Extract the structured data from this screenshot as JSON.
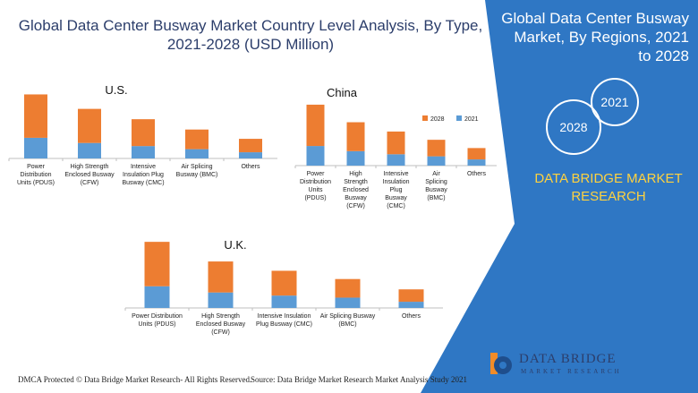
{
  "header": {
    "title": "Global Data Center Busway Market Country Level Analysis, By Type, 2021-2028 (USD Million)",
    "side_title": "Global Data Center Busway Market, By Regions, 2021 to 2028"
  },
  "brand": {
    "name": "DATA BRIDGE MARKET RESEARCH",
    "year_a": "2021",
    "year_b": "2028",
    "logo_name": "DATA BRIDGE",
    "logo_sub": "MARKET RESEARCH",
    "colors": {
      "panel": "#2f77c4",
      "text_accent": "#ffd23f",
      "bar_2028": "#ed7d31",
      "bar_2021": "#5b9bd5"
    }
  },
  "footer": {
    "dmca": "DMCA Protected © Data Bridge Market Research- All Rights Reserved.",
    "source": "Source: Data Bridge Market Research Market Analysis Study 2021"
  },
  "chart_data": [
    {
      "type": "bar",
      "stacked": true,
      "title": "U.S.",
      "categories": [
        "Power Distribution Units (PDUS)",
        "High Strength Enclosed Busway (CFW)",
        "Intensive Insulation Plug Busway (CMC)",
        "Air Splicing Busway (BMC)",
        "Others"
      ],
      "series": [
        {
          "name": "2021",
          "color": "#5b9bd5",
          "values": [
            20,
            15,
            12,
            9,
            6
          ]
        },
        {
          "name": "2028",
          "color": "#ed7d31",
          "values": [
            42,
            33,
            26,
            19,
            13
          ]
        }
      ],
      "ylim": [
        0,
        65
      ]
    },
    {
      "type": "bar",
      "stacked": true,
      "title": "China",
      "categories": [
        "Power Distribution Units (PDUS)",
        "High Strength Enclosed Busway (CFW)",
        "Intensive Insulation Plug Busway (CMC)",
        "Air Splicing Busway (BMC)",
        "Others"
      ],
      "series": [
        {
          "name": "2021",
          "color": "#5b9bd5",
          "values": [
            19,
            14,
            11,
            9,
            6
          ]
        },
        {
          "name": "2028",
          "color": "#ed7d31",
          "values": [
            40,
            28,
            22,
            16,
            11
          ]
        }
      ],
      "legend": "top-right",
      "ylim": [
        0,
        65
      ]
    },
    {
      "type": "bar",
      "stacked": true,
      "title": "U.K.",
      "categories": [
        "Power Distribution Units (PDUS)",
        "High Strength Enclosed Busway (CFW)",
        "Intensive Insulation Plug Busway (CMC)",
        "Air Splicing Busway (BMC)",
        "Others"
      ],
      "series": [
        {
          "name": "2021",
          "color": "#5b9bd5",
          "values": [
            21,
            15,
            12,
            10,
            6
          ]
        },
        {
          "name": "2028",
          "color": "#ed7d31",
          "values": [
            43,
            30,
            24,
            18,
            12
          ]
        }
      ],
      "ylim": [
        0,
        65
      ]
    }
  ]
}
